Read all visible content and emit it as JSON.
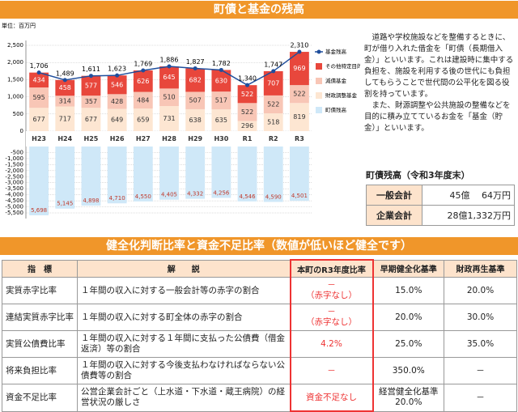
{
  "header": {
    "title": "町債と基金の残高"
  },
  "chart_data": {
    "type": "bar",
    "unit_label": "単位：百万円",
    "categories": [
      "H23",
      "H24",
      "H25",
      "H26",
      "H27",
      "H28",
      "H29",
      "H30",
      "R1",
      "R2",
      "R3"
    ],
    "ylim": [
      0,
      2500
    ],
    "yticks": [
      0,
      500,
      {
        "value": 1000,
        "label": "1,000"
      },
      {
        "value": 1500,
        "label": "1,500"
      },
      {
        "value": 2000,
        "label": "2,000"
      },
      {
        "value": 2500,
        "label": "2,500"
      }
    ],
    "y2lim": [
      -5700,
      0
    ],
    "y2ticks": [
      -500,
      {
        "value": -1000,
        "label": "-1,000"
      },
      {
        "value": -1500,
        "label": "-1,500"
      },
      {
        "value": -2000,
        "label": "-2,000"
      },
      {
        "value": -2500,
        "label": "-2,500"
      },
      {
        "value": -3000,
        "label": "-3,000"
      },
      {
        "value": -3500,
        "label": "-3,500"
      },
      {
        "value": -4000,
        "label": "-4,000"
      },
      {
        "value": -4500,
        "label": "-4,500"
      },
      {
        "value": -5000,
        "label": "-5,000"
      },
      {
        "value": -5500,
        "label": "-5,500"
      }
    ],
    "stacked": true,
    "grid": true,
    "legend": "right",
    "series": [
      {
        "name": "基金残高",
        "type": "line",
        "color": "#1f4e9c",
        "values": [
          1706,
          1489,
          1611,
          1623,
          1769,
          1886,
          1827,
          1782,
          1340,
          1747,
          2310
        ],
        "value_labels": [
          "1,706",
          "1,489",
          "1,611",
          "1,623",
          "1,769",
          "1,886",
          "1,827",
          "1,782",
          "1,340",
          "1,747",
          "2,310"
        ]
      },
      {
        "name": "その他特定目的基金",
        "color": "#e8473c",
        "values": [
          434,
          458,
          577,
          546,
          626,
          645,
          682,
          630,
          522,
          707,
          969
        ]
      },
      {
        "name": "減債基金",
        "color": "#f8c6b6",
        "values": [
          595,
          314,
          357,
          428,
          484,
          510,
          507,
          517,
          522,
          522,
          522
        ]
      },
      {
        "name": "財政調整基金",
        "color": "#fde6d2",
        "values": [
          677,
          717,
          677,
          649,
          659,
          731,
          638,
          635,
          296,
          518,
          819
        ]
      },
      {
        "name": "町債残高",
        "color": "#cfe8f8",
        "axis": "y2",
        "values": [
          -5698,
          -5145,
          -4898,
          -4710,
          -4550,
          -4405,
          -4332,
          -4256,
          -4546,
          -4590,
          -4501
        ],
        "value_labels": [
          "5,698",
          "5,145",
          "4,898",
          "4,710",
          "4,550",
          "4,405",
          "4,332",
          "4,256",
          "4,546",
          "4,590",
          "4,501"
        ]
      }
    ]
  },
  "description": {
    "paragraphs": [
      "道路や学校施設などを整備するときに、町が借り入れた借金を「町債（長期借入金）」といいます。これは建設時に集中する負担を、施設を利用する後の世代にも負担してもらうことで世代間の公平化を図る役割を持っています。",
      "また、財源調整や公共施設の整備などを目的に積み立てているお金を「基金（貯金）」といいます。"
    ]
  },
  "balance": {
    "title": "町債残高（令和3年度末）",
    "rows": [
      [
        "一般会計",
        "45億　 64万円"
      ],
      [
        "企業会計",
        "28億1,332万円"
      ]
    ]
  },
  "ratios": {
    "title": "健全化判断比率と資金不足比率（数値が低いほど健全です）",
    "headers": [
      "指　標",
      "解　　説",
      "本町のR3年度比率",
      "早期健全化基準",
      "財政再生基準"
    ],
    "rows": [
      [
        "実質赤字比率",
        "１年間の収入に対する一般会計等の赤字の割合",
        [
          "－",
          "（赤字なし）"
        ],
        "15.0%",
        "20.0%"
      ],
      [
        "連結実質赤字比率",
        "１年間の収入に対する町全体の赤字の割合",
        [
          "－",
          "（赤字なし）"
        ],
        "20.0%",
        "30.0%"
      ],
      [
        "実質公債費比率",
        "１年間の収入に対する１年間に支払った公債費（借金返済）等の割合",
        "4.2%",
        "25.0%",
        "35.0%"
      ],
      [
        "将来負担比率",
        "１年間の収入に対する今後支払わなければならない公債費等の割合",
        "－",
        "350.0%",
        "－"
      ],
      [
        "資金不足比率",
        "公営企業会計ごと（上水道・下水道・蔵王病院）の経営状況の厳しさ",
        "資金不足なし",
        [
          "経営健全化基準",
          "20.0%"
        ],
        "－"
      ]
    ]
  }
}
